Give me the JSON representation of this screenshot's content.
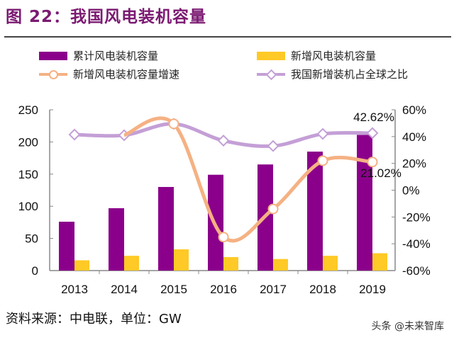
{
  "title": "图 22：我国风电装机容量",
  "footer": "资料来源：中电联，单位：GW",
  "watermark": "头条 @未来智库",
  "chart_data": {
    "type": "bar+line",
    "categories": [
      "2013",
      "2014",
      "2015",
      "2016",
      "2017",
      "2018",
      "2019"
    ],
    "series": [
      {
        "name": "累计风电装机容量",
        "type": "bar",
        "axis": "left",
        "color": "#8b008b",
        "values": [
          76,
          97,
          130,
          149,
          165,
          185,
          211
        ]
      },
      {
        "name": "新增风电装机容量",
        "type": "bar",
        "axis": "left",
        "color": "#ffc926",
        "values": [
          16,
          23,
          33,
          21,
          18,
          23,
          27
        ]
      },
      {
        "name": "新增风电装机容量增速",
        "type": "line",
        "axis": "right",
        "color": "#f5b183",
        "values": [
          null,
          41,
          49.5,
          -35,
          -14,
          22,
          21.02
        ]
      },
      {
        "name": "我国新增装机占全球之比",
        "type": "line",
        "axis": "right",
        "color": "#c49fd6",
        "values": [
          41.5,
          41,
          49.5,
          37,
          33,
          42,
          42.62
        ]
      }
    ],
    "annotations": [
      "42.62%",
      "21.02%"
    ],
    "left_axis": {
      "ylim": [
        0,
        250
      ],
      "ticks": [
        "0",
        "50",
        "100",
        "150",
        "200",
        "250"
      ]
    },
    "right_axis": {
      "ylim": [
        -60,
        60
      ],
      "ticks": [
        "-60%",
        "-40%",
        "-20%",
        "0%",
        "20%",
        "40%",
        "60%"
      ]
    },
    "legend": "top",
    "grid": false
  }
}
